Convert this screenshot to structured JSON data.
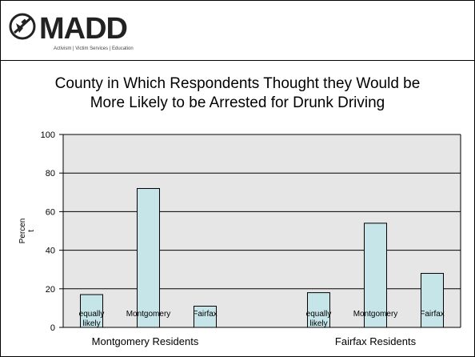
{
  "logo": {
    "wordmark": "MADD",
    "tagline": "Activism | Victim Services | Education",
    "emblem_icon": "madd-emblem-icon"
  },
  "slide_title": {
    "line1": "County in Which Respondents Thought they Would be",
    "line2": "More Likely to be Arrested for Drunk Driving"
  },
  "colors": {
    "bar_fill": "#c6e5e8",
    "plot_bg": "#e6e6e6",
    "frame": "#000000"
  },
  "chart_data": {
    "type": "bar",
    "title": "County in Which Respondents Thought they Would be More Likely to be Arrested for Drunk Driving",
    "ylabel": "Percen t",
    "ylim": [
      0,
      100
    ],
    "yticks": [
      0,
      20,
      40,
      60,
      80,
      100
    ],
    "grid": true,
    "groups": [
      {
        "name": "Montgomery Residents",
        "bars": [
          {
            "label": "equally likely",
            "value": 17
          },
          {
            "label": "Montgomery",
            "value": 72
          },
          {
            "label": "Fairfax",
            "value": 11
          }
        ]
      },
      {
        "name": "Fairfax Residents",
        "bars": [
          {
            "label": "equally likely",
            "value": 18
          },
          {
            "label": "Montgomery",
            "value": 54
          },
          {
            "label": "Fairfax",
            "value": 28
          }
        ]
      }
    ]
  }
}
